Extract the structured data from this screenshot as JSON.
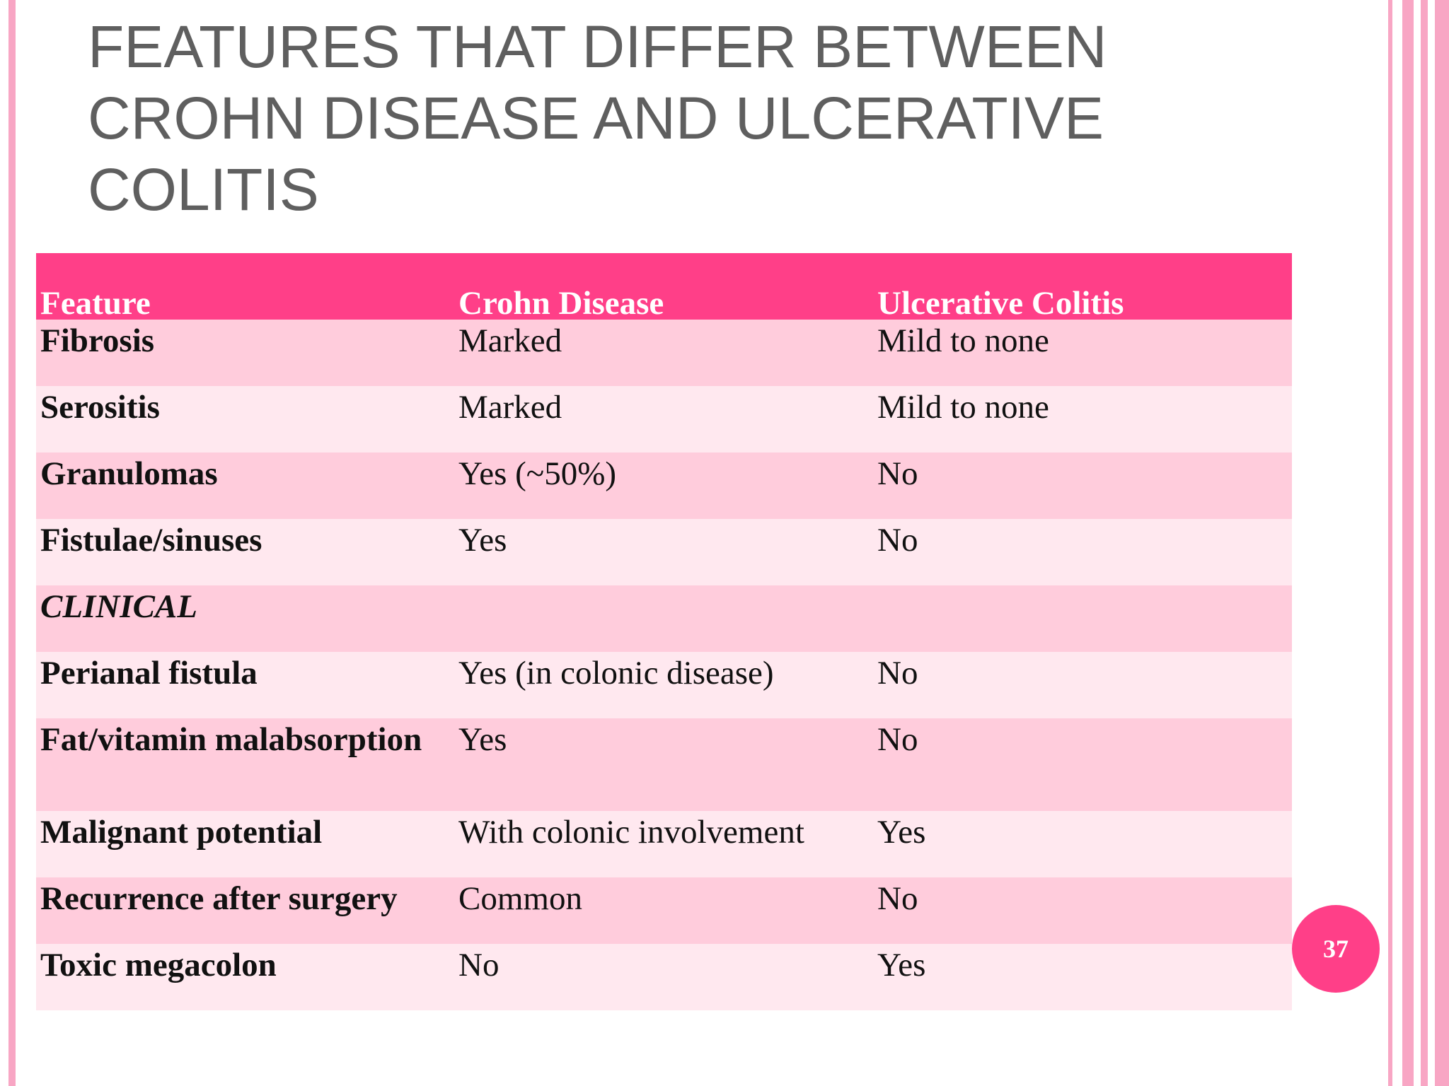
{
  "slide": {
    "title": "FEATURES THAT DIFFER BETWEEN CROHN DISEASE AND ULCERATIVE COLITIS",
    "page_number": "37"
  },
  "table": {
    "headers": [
      "Feature",
      "Crohn Disease",
      "Ulcerative Colitis"
    ],
    "rows": [
      {
        "feature": "Fibrosis",
        "crohn": "Marked",
        "uc": "Mild to none"
      },
      {
        "feature": "Serositis",
        "crohn": "Marked",
        "uc": "Mild to none"
      },
      {
        "feature": "Granulomas",
        "crohn": "Yes (~50%)",
        "uc": "No"
      },
      {
        "feature": "Fistulae/sinuses",
        "crohn": "Yes",
        "uc": "No"
      },
      {
        "feature": "CLINICAL",
        "crohn": "",
        "uc": ""
      },
      {
        "feature": "Perianal fistula",
        "crohn": "Yes (in colonic disease)",
        "uc": "No"
      },
      {
        "feature": "Fat/vitamin malabsorption",
        "crohn": "Yes",
        "uc": "No"
      },
      {
        "feature": "Malignant potential",
        "crohn": "With colonic involvement",
        "uc": "Yes"
      },
      {
        "feature": "Recurrence after surgery",
        "crohn": "Common",
        "uc": "No"
      },
      {
        "feature": "Toxic megacolon",
        "crohn": "No",
        "uc": "Yes"
      }
    ]
  },
  "colors": {
    "header_bg": "#ff3f88",
    "row_odd": "#ffccdc",
    "row_even": "#ffe8ef",
    "title": "#5f5f5f",
    "highlight_red": "#e01818",
    "border_pink": "#f8a6c4"
  }
}
